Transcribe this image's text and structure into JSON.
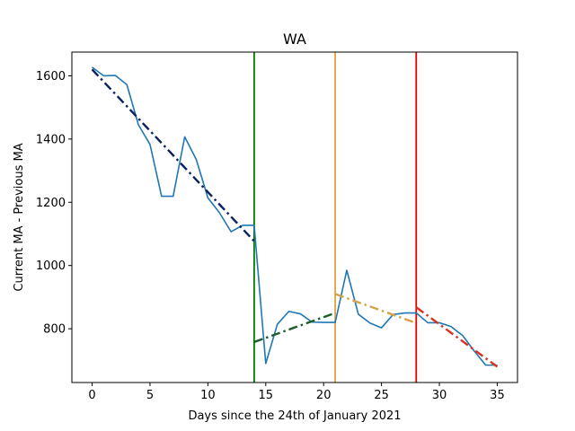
{
  "chart_data": {
    "type": "line",
    "title": "WA",
    "xlabel": "Days since the 24th of January 2021",
    "ylabel": "Current MA - Previous MA",
    "xlim": [
      -1.75,
      36.75
    ],
    "ylim": [
      630,
      1675
    ],
    "xticks": [
      0,
      5,
      10,
      15,
      20,
      25,
      30,
      35
    ],
    "yticks": [
      800,
      1000,
      1200,
      1400,
      1600
    ],
    "grid": false,
    "series": [
      {
        "color": "#1f77b4",
        "style": "solid",
        "x": [
          0,
          1,
          2,
          3,
          4,
          5,
          6,
          7,
          8,
          9,
          10,
          11,
          12,
          13,
          14,
          15,
          16,
          17,
          18,
          19,
          20,
          21,
          22,
          23,
          24,
          25,
          26,
          27,
          28,
          29,
          30,
          31,
          32,
          33,
          34,
          35
        ],
        "y": [
          1627,
          1600,
          1601,
          1572,
          1445,
          1383,
          1219,
          1219,
          1407,
          1335,
          1214,
          1167,
          1107,
          1127,
          1127,
          690,
          814,
          855,
          847,
          821,
          820,
          820,
          985,
          846,
          818,
          803,
          845,
          850,
          850,
          819,
          819,
          807,
          779,
          730,
          685,
          685
        ]
      }
    ],
    "trend_lines": [
      {
        "color": "#0b2260",
        "style": "dashdot",
        "x": [
          0,
          14
        ],
        "y": [
          1620,
          1077
        ]
      },
      {
        "color": "#1e5c2c",
        "style": "dashdot",
        "x": [
          14,
          21
        ],
        "y": [
          758,
          850
        ]
      },
      {
        "color": "#d4a24a",
        "style": "dashdot",
        "x": [
          21,
          28
        ],
        "y": [
          910,
          818
        ]
      },
      {
        "color": "#dc3020",
        "style": "dashdot",
        "x": [
          28,
          35
        ],
        "y": [
          868,
          680
        ]
      }
    ],
    "vertical_lines": [
      {
        "x": 14,
        "color": "#008000"
      },
      {
        "x": 21,
        "color": "#e8a040"
      },
      {
        "x": 28,
        "color": "#e00000"
      }
    ]
  }
}
